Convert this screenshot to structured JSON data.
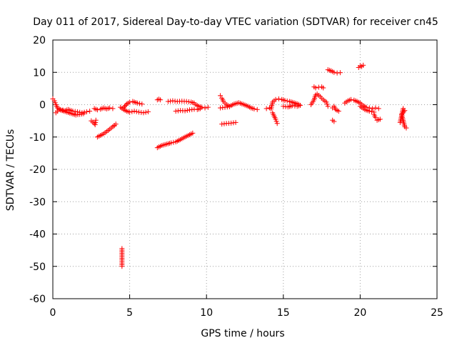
{
  "chart_data": {
    "type": "scatter",
    "title": "Day 011 of 2017, Sidereal Day-to-day VTEC variation (SDTVAR) for receiver cn45",
    "xlabel": "GPS time / hours",
    "ylabel": "SDTVAR / TECUs",
    "xlim": [
      0,
      25
    ],
    "ylim": [
      -60,
      20
    ],
    "xticks": [
      "0",
      "5",
      "10",
      "15",
      "20",
      "25"
    ],
    "yticks": [
      "20",
      "10",
      "0",
      "-10",
      "-20",
      "-30",
      "-40",
      "-50",
      "-60"
    ],
    "grid": true,
    "marker": "+",
    "color": "#ff0000",
    "series": [
      {
        "name": "s1",
        "points": [
          [
            0.0,
            1.8
          ],
          [
            0.1,
            1.2
          ],
          [
            0.2,
            0.0
          ],
          [
            0.3,
            -1.0
          ],
          [
            0.5,
            -1.5
          ],
          [
            0.8,
            -1.8
          ],
          [
            1.0,
            -1.5
          ],
          [
            1.3,
            -2.0
          ],
          [
            1.6,
            -2.2
          ],
          [
            1.9,
            -2.5
          ],
          [
            2.2,
            -2.2
          ],
          [
            2.4,
            -2.0
          ]
        ]
      },
      {
        "name": "s2",
        "points": [
          [
            0.2,
            -2.5
          ],
          [
            0.4,
            -1.5
          ],
          [
            1.5,
            -3.2
          ],
          [
            2.0,
            -2.8
          ]
        ]
      },
      {
        "name": "s3",
        "points": [
          [
            2.5,
            -5.0
          ],
          [
            2.6,
            -5.4
          ],
          [
            2.7,
            -5.8
          ],
          [
            2.75,
            -6.2
          ],
          [
            2.8,
            -4.8
          ]
        ]
      },
      {
        "name": "s4",
        "points": [
          [
            2.7,
            -1.2
          ],
          [
            2.9,
            -1.6
          ],
          [
            3.1,
            -1.4
          ],
          [
            3.3,
            -1.0
          ],
          [
            3.5,
            -1.3
          ],
          [
            3.7,
            -1.0
          ],
          [
            3.9,
            -1.2
          ]
        ]
      },
      {
        "name": "s5",
        "points": [
          [
            2.9,
            -10.0
          ],
          [
            3.1,
            -9.5
          ],
          [
            3.3,
            -9.0
          ],
          [
            3.5,
            -8.3
          ],
          [
            3.7,
            -7.6
          ],
          [
            3.9,
            -6.8
          ],
          [
            4.1,
            -6.0
          ],
          [
            4.0,
            -6.5
          ]
        ]
      },
      {
        "name": "s6",
        "points": [
          [
            4.4,
            -0.8
          ],
          [
            4.6,
            -1.5
          ],
          [
            4.8,
            -2.0
          ],
          [
            5.0,
            -2.3
          ],
          [
            5.3,
            -2.0
          ],
          [
            5.6,
            -2.3
          ],
          [
            5.9,
            -2.5
          ],
          [
            6.2,
            -2.2
          ]
        ]
      },
      {
        "name": "s7",
        "points": [
          [
            4.6,
            -1.0
          ],
          [
            4.8,
            0.2
          ],
          [
            5.0,
            0.8
          ],
          [
            5.2,
            1.0
          ],
          [
            5.5,
            0.5
          ],
          [
            5.8,
            0.2
          ]
        ]
      },
      {
        "name": "s8",
        "points": [
          [
            4.5,
            -44.5
          ],
          [
            4.5,
            -46.0
          ],
          [
            4.5,
            -47.0
          ],
          [
            4.5,
            -48.5
          ],
          [
            4.5,
            -50.0
          ]
        ]
      },
      {
        "name": "s9",
        "points": [
          [
            6.8,
            1.5
          ],
          [
            6.9,
            1.7
          ],
          [
            7.0,
            1.5
          ]
        ]
      },
      {
        "name": "s10",
        "points": [
          [
            7.5,
            1.0
          ],
          [
            7.8,
            1.2
          ],
          [
            8.1,
            1.0
          ],
          [
            8.4,
            1.1
          ],
          [
            8.7,
            1.0
          ],
          [
            9.0,
            0.8
          ],
          [
            9.2,
            0.5
          ],
          [
            9.3,
            0.0
          ],
          [
            9.5,
            -0.5
          ],
          [
            9.7,
            -0.8
          ],
          [
            9.9,
            -1.0
          ],
          [
            10.1,
            -0.8
          ]
        ]
      },
      {
        "name": "s11",
        "points": [
          [
            8.0,
            -2.0
          ],
          [
            8.3,
            -1.8
          ],
          [
            8.6,
            -1.9
          ],
          [
            8.9,
            -1.6
          ],
          [
            9.2,
            -1.4
          ],
          [
            9.4,
            -1.5
          ],
          [
            9.6,
            -1.2
          ]
        ]
      },
      {
        "name": "s12",
        "points": [
          [
            6.8,
            -13.3
          ],
          [
            7.1,
            -12.6
          ],
          [
            7.4,
            -12.2
          ],
          [
            7.7,
            -11.8
          ],
          [
            8.0,
            -11.5
          ],
          [
            8.3,
            -10.8
          ],
          [
            8.6,
            -10.0
          ],
          [
            8.9,
            -9.3
          ],
          [
            9.1,
            -8.8
          ]
        ]
      },
      {
        "name": "s13",
        "points": [
          [
            10.9,
            2.8
          ],
          [
            11.0,
            2.0
          ],
          [
            11.1,
            1.0
          ],
          [
            11.3,
            0.0
          ],
          [
            11.5,
            -0.5
          ],
          [
            11.8,
            0.2
          ],
          [
            12.1,
            0.6
          ],
          [
            12.4,
            0.1
          ],
          [
            12.7,
            -0.5
          ],
          [
            12.9,
            -1.0
          ],
          [
            13.1,
            -1.3
          ],
          [
            13.3,
            -1.5
          ]
        ]
      },
      {
        "name": "s14",
        "points": [
          [
            10.9,
            -1.0
          ],
          [
            11.2,
            -0.8
          ],
          [
            11.5,
            -0.6
          ]
        ]
      },
      {
        "name": "s15",
        "points": [
          [
            11.0,
            -6.0
          ],
          [
            11.3,
            -5.8
          ],
          [
            11.6,
            -5.7
          ],
          [
            11.9,
            -5.5
          ]
        ]
      },
      {
        "name": "s16",
        "points": [
          [
            13.9,
            -1.2
          ],
          [
            14.1,
            -1.0
          ],
          [
            14.2,
            -1.3
          ],
          [
            14.3,
            0.8
          ],
          [
            14.5,
            1.6
          ],
          [
            14.7,
            1.8
          ],
          [
            14.9,
            1.6
          ],
          [
            15.1,
            1.3
          ],
          [
            15.4,
            1.0
          ],
          [
            15.7,
            0.6
          ],
          [
            16.0,
            0.1
          ]
        ]
      },
      {
        "name": "s17",
        "points": [
          [
            14.3,
            -2.5
          ],
          [
            14.4,
            -3.5
          ],
          [
            14.5,
            -4.5
          ],
          [
            14.6,
            -5.8
          ]
        ]
      },
      {
        "name": "s18",
        "points": [
          [
            15.0,
            -0.5
          ],
          [
            15.3,
            -0.7
          ],
          [
            15.6,
            -0.3
          ],
          [
            15.9,
            -0.5
          ],
          [
            16.1,
            -0.2
          ]
        ]
      },
      {
        "name": "s19",
        "points": [
          [
            16.8,
            0.0
          ],
          [
            17.0,
            1.5
          ],
          [
            17.1,
            3.0
          ],
          [
            17.2,
            3.3
          ],
          [
            17.4,
            2.5
          ],
          [
            17.6,
            1.5
          ],
          [
            17.8,
            0.8
          ],
          [
            17.9,
            -0.5
          ]
        ]
      },
      {
        "name": "s20",
        "points": [
          [
            17.0,
            5.5
          ],
          [
            17.1,
            5.2
          ],
          [
            17.3,
            5.4
          ],
          [
            17.5,
            5.5
          ],
          [
            17.6,
            5.2
          ]
        ]
      },
      {
        "name": "s21",
        "points": [
          [
            18.2,
            -1.0
          ],
          [
            18.3,
            -0.5
          ],
          [
            18.4,
            -1.5
          ],
          [
            18.6,
            -2.0
          ]
        ]
      },
      {
        "name": "s22",
        "points": [
          [
            18.2,
            -4.8
          ],
          [
            18.3,
            -5.2
          ]
        ]
      },
      {
        "name": "s23",
        "points": [
          [
            17.9,
            10.8
          ],
          [
            18.1,
            10.5
          ],
          [
            18.3,
            10.0
          ],
          [
            18.5,
            9.8
          ],
          [
            18.7,
            9.9
          ]
        ]
      },
      {
        "name": "s24",
        "points": [
          [
            19.0,
            0.5
          ],
          [
            19.2,
            1.2
          ],
          [
            19.4,
            1.6
          ],
          [
            19.6,
            1.4
          ],
          [
            19.8,
            1.0
          ],
          [
            20.0,
            0.5
          ],
          [
            20.2,
            -0.3
          ],
          [
            20.4,
            -0.8
          ],
          [
            20.6,
            -1.0
          ],
          [
            20.8,
            -1.2
          ],
          [
            21.0,
            -1.0
          ],
          [
            21.2,
            -1.2
          ]
        ]
      },
      {
        "name": "s25",
        "points": [
          [
            20.0,
            -0.5
          ],
          [
            20.3,
            -1.5
          ],
          [
            20.6,
            -2.0
          ],
          [
            20.9,
            -2.3
          ]
        ]
      },
      {
        "name": "s26",
        "points": [
          [
            20.9,
            -3.0
          ],
          [
            21.0,
            -4.0
          ],
          [
            21.1,
            -4.8
          ],
          [
            21.3,
            -4.5
          ]
        ]
      },
      {
        "name": "s27",
        "points": [
          [
            19.9,
            11.5
          ],
          [
            20.0,
            12.0
          ],
          [
            20.1,
            11.8
          ],
          [
            20.2,
            12.2
          ]
        ]
      },
      {
        "name": "s28",
        "points": [
          [
            22.6,
            -5.5
          ],
          [
            22.8,
            -1.2
          ],
          [
            22.9,
            -1.8
          ],
          [
            22.7,
            -3.0
          ],
          [
            22.9,
            -6.8
          ],
          [
            23.0,
            -7.2
          ]
        ]
      }
    ]
  }
}
